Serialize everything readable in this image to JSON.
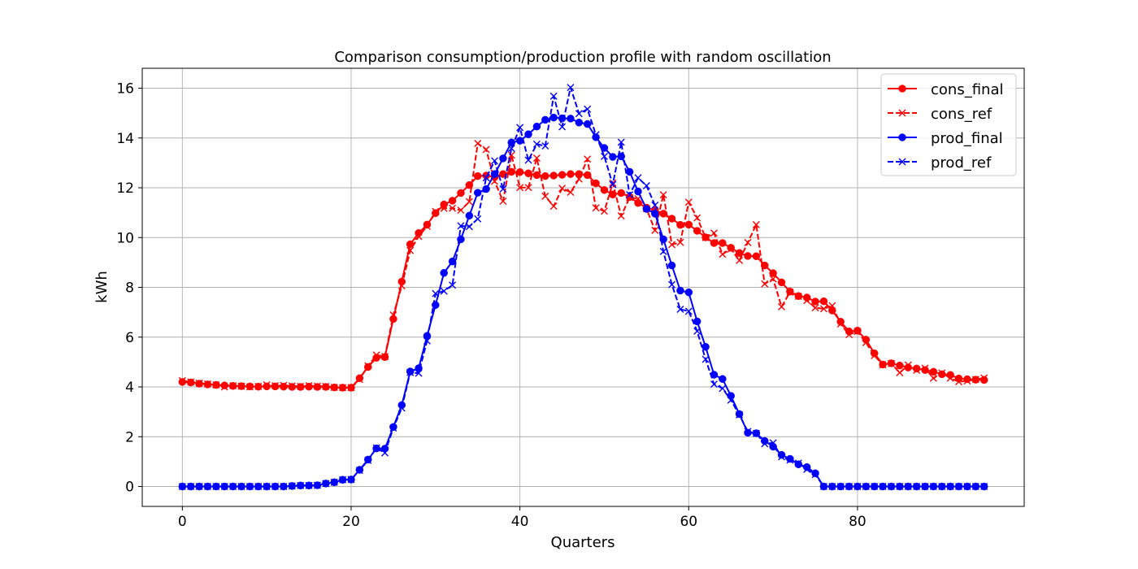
{
  "chart_data": {
    "type": "line",
    "title": "Comparison consumption/production profile with random oscillation",
    "xlabel": "Quarters",
    "ylabel": "kWh",
    "xlim": [
      -4.75,
      99.75
    ],
    "ylim": [
      -0.8,
      16.8
    ],
    "xticks": [
      0,
      20,
      40,
      60,
      80
    ],
    "yticks": [
      0,
      2,
      4,
      6,
      8,
      10,
      12,
      14,
      16
    ],
    "grid": true,
    "legend_position": "upper right",
    "x_start": 0,
    "series": [
      {
        "name": "cons_final",
        "color": "#ff0000",
        "linestyle": "solid",
        "marker": "circle",
        "values": [
          4.2,
          4.18,
          4.13,
          4.1,
          4.08,
          4.06,
          4.04,
          4.03,
          4.02,
          4.01,
          4.02,
          4.02,
          4.01,
          4.0,
          4.0,
          4.01,
          4.0,
          4.0,
          3.98,
          3.97,
          3.97,
          4.35,
          4.8,
          5.17,
          5.2,
          6.73,
          8.23,
          9.73,
          10.18,
          10.52,
          10.98,
          11.33,
          11.48,
          11.79,
          12.11,
          12.47,
          12.49,
          12.43,
          12.55,
          12.64,
          12.63,
          12.58,
          12.51,
          12.47,
          12.49,
          12.52,
          12.55,
          12.55,
          12.51,
          12.18,
          11.91,
          11.73,
          11.79,
          11.63,
          11.39,
          11.2,
          11.1,
          10.96,
          10.76,
          10.51,
          10.52,
          10.27,
          10.01,
          9.78,
          9.78,
          9.59,
          9.38,
          9.26,
          9.25,
          8.88,
          8.57,
          8.2,
          7.83,
          7.65,
          7.59,
          7.43,
          7.44,
          7.07,
          6.62,
          6.23,
          6.26,
          5.9,
          5.35,
          4.9,
          4.95,
          4.86,
          4.78,
          4.74,
          4.68,
          4.61,
          4.51,
          4.48,
          4.34,
          4.31,
          4.29,
          4.28
        ]
      },
      {
        "name": "cons_ref",
        "color": "#ff0000",
        "linestyle": "dashed",
        "marker": "x",
        "values": [
          4.25,
          4.2,
          4.15,
          4.12,
          4.08,
          4.0,
          4.05,
          4.03,
          4.0,
          4.02,
          4.08,
          4.05,
          4.06,
          4.04,
          4.02,
          4.05,
          4.03,
          4.02,
          3.98,
          3.97,
          3.97,
          4.3,
          4.85,
          5.28,
          5.22,
          6.89,
          8.06,
          9.48,
          10.05,
          10.45,
          11.05,
          11.17,
          11.18,
          11.1,
          11.44,
          13.78,
          13.54,
          12.26,
          11.46,
          13.31,
          12.01,
          12.01,
          13.19,
          11.66,
          11.26,
          11.98,
          11.82,
          12.35,
          13.15,
          11.19,
          11.06,
          12.19,
          10.87,
          11.61,
          11.56,
          11.16,
          10.29,
          11.72,
          9.72,
          9.81,
          11.42,
          10.79,
          10.0,
          10.18,
          9.33,
          9.54,
          9.08,
          9.8,
          10.52,
          8.14,
          8.34,
          7.22,
          7.81,
          7.64,
          7.47,
          7.18,
          7.14,
          7.26,
          6.53,
          6.1,
          6.23,
          5.78,
          5.26,
          4.89,
          4.94,
          4.57,
          4.88,
          4.67,
          4.75,
          4.35,
          4.56,
          4.35,
          4.21,
          4.24,
          4.3,
          4.36
        ]
      },
      {
        "name": "prod_final",
        "color": "#0000ff",
        "linestyle": "solid",
        "marker": "circle",
        "values": [
          0,
          0,
          0,
          0,
          0,
          0,
          0,
          0,
          0,
          0,
          0,
          0,
          0,
          0.02,
          0.04,
          0.04,
          0.05,
          0.12,
          0.17,
          0.27,
          0.28,
          0.67,
          1.08,
          1.53,
          1.52,
          2.39,
          3.27,
          4.62,
          4.75,
          6.05,
          7.29,
          8.58,
          9.04,
          9.93,
          10.88,
          11.8,
          11.95,
          12.55,
          13.18,
          13.82,
          13.89,
          14.15,
          14.46,
          14.73,
          14.82,
          14.79,
          14.78,
          14.62,
          14.56,
          14.03,
          13.6,
          13.24,
          13.26,
          12.64,
          11.85,
          11.15,
          10.96,
          9.93,
          8.88,
          7.87,
          7.8,
          6.63,
          5.61,
          4.49,
          4.32,
          3.64,
          2.91,
          2.16,
          2.14,
          1.83,
          1.6,
          1.27,
          1.11,
          0.89,
          0.78,
          0.53,
          0,
          0,
          0,
          0,
          0,
          0,
          0,
          0,
          0,
          0,
          0,
          0,
          0,
          0,
          0,
          0,
          0,
          0,
          0,
          0
        ]
      },
      {
        "name": "prod_ref",
        "color": "#0000ff",
        "linestyle": "dashed",
        "marker": "x",
        "values": [
          0,
          0,
          0,
          0,
          0,
          0,
          0,
          0,
          0,
          0,
          0,
          0,
          0,
          0.02,
          0.04,
          0.04,
          0.05,
          0.12,
          0.17,
          0.27,
          0.28,
          0.65,
          1.05,
          1.55,
          1.35,
          2.35,
          3.15,
          4.58,
          4.55,
          5.85,
          7.75,
          7.85,
          8.09,
          10.47,
          10.44,
          10.75,
          12.4,
          13.08,
          11.95,
          13.58,
          14.42,
          13.11,
          13.75,
          13.68,
          15.68,
          14.45,
          16.03,
          14.98,
          15.16,
          14.13,
          13.26,
          12.13,
          13.83,
          11.72,
          12.4,
          12.08,
          11.3,
          9.44,
          8.11,
          7.12,
          7.04,
          6.24,
          5.11,
          4.11,
          3.94,
          3.47,
          2.88,
          2.21,
          2.13,
          1.72,
          1.75,
          1.19,
          1.06,
          0.94,
          0.69,
          0.48,
          0,
          0,
          0,
          0,
          0,
          0,
          0,
          0,
          0,
          0,
          0,
          0,
          0,
          0,
          0,
          0,
          0,
          0,
          0,
          0
        ]
      }
    ]
  }
}
